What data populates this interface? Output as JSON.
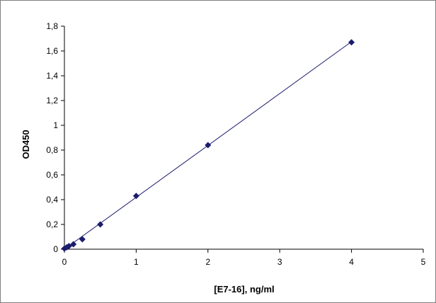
{
  "chart_data": {
    "type": "scatter",
    "xlabel": "[E7-16], ng/ml",
    "ylabel": "OD450",
    "xlim": [
      0,
      5
    ],
    "ylim": [
      0,
      1.8
    ],
    "x_ticks": [
      "0",
      "1",
      "2",
      "3",
      "4",
      "5"
    ],
    "y_ticks": [
      "0",
      "0,2",
      "0,4",
      "0,6",
      "0,8",
      "1",
      "1,2",
      "1,4",
      "1,6",
      "1,8"
    ],
    "grid": false,
    "legend": "none",
    "series": [
      {
        "x": [
          0,
          0.03125,
          0.0625,
          0.125,
          0.25,
          0.5,
          1,
          2,
          4
        ],
        "y": [
          0.005,
          0.015,
          0.025,
          0.04,
          0.08,
          0.2,
          0.43,
          0.84,
          1.67
        ],
        "marker": "diamond",
        "color": "#1c1c6e"
      }
    ],
    "trendline": {
      "type": "linear",
      "from": [
        0,
        0
      ],
      "to": [
        4,
        1.675
      ],
      "color": "#1c1c6e"
    }
  }
}
